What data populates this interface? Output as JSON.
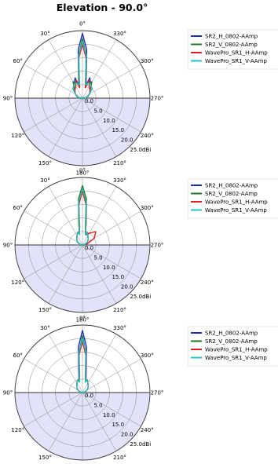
{
  "title": "Elevation - 90.0°",
  "colors": {
    "SR2_H_0802-AAmp": "#1f2db5",
    "SR2_V_0802-AAmp": "#1f7a1f",
    "WavePro_SR1_H-AAmp": "#e02020",
    "WavePro_SR1_V-AAmp": "#22c4c4",
    "lower_half_fill": "#e2e2f8"
  },
  "chart_data": [
    {
      "type": "polar-line",
      "angle_labels": [
        "0°",
        "330°",
        "300°",
        "270°",
        "240°",
        "210°",
        "180°",
        "150°",
        "120°",
        "90°",
        "60°",
        "30°"
      ],
      "radial_labels": [
        "0.0",
        "5.0",
        "10.0",
        "15.0",
        "20.0",
        "25.0dBi"
      ],
      "rlim": [
        0,
        25
      ],
      "legend": [
        "SR2_H_0802-AAmp",
        "SR2_V_0802-AAmp",
        "WavePro_SR1_H-AAmp",
        "WavePro_SR1_V-AAmp"
      ],
      "series": [
        {
          "name": "SR2_H_0802-AAmp",
          "theta": [
            0,
            5,
            10,
            15,
            20,
            30,
            45,
            60,
            75,
            90,
            270,
            285,
            300,
            315,
            330,
            340,
            345,
            350,
            355
          ],
          "r": [
            24,
            18,
            8,
            5,
            8,
            6,
            5,
            3,
            2,
            1,
            1,
            2,
            3,
            5,
            6,
            8,
            5,
            8,
            18
          ]
        },
        {
          "name": "SR2_V_0802-AAmp",
          "theta": [
            0,
            5,
            10,
            15,
            20,
            30,
            45,
            60,
            75,
            90,
            270,
            285,
            300,
            315,
            330,
            340,
            345,
            350,
            355
          ],
          "r": [
            22,
            16,
            8,
            4,
            6,
            7,
            4,
            3,
            2,
            1,
            1,
            2,
            3,
            4,
            7,
            6,
            4,
            8,
            16
          ]
        },
        {
          "name": "WavePro_SR1_H-AAmp",
          "theta": [
            0,
            5,
            10,
            15,
            20,
            30,
            45,
            60,
            75,
            90,
            270,
            285,
            300,
            315,
            330,
            340,
            345,
            350,
            355
          ],
          "r": [
            20,
            15,
            7,
            4,
            7,
            5,
            4,
            3,
            2,
            1,
            1,
            2,
            3,
            4,
            5,
            7,
            4,
            7,
            15
          ]
        },
        {
          "name": "WavePro_SR1_V-AAmp",
          "theta": [
            0,
            5,
            10,
            15,
            20,
            30,
            45,
            60,
            75,
            90,
            270,
            285,
            300,
            315,
            330,
            340,
            345,
            350,
            355
          ],
          "r": [
            21,
            16,
            6,
            5,
            6,
            6,
            5,
            3,
            2,
            1,
            1,
            2,
            3,
            5,
            6,
            6,
            5,
            6,
            16
          ]
        }
      ]
    },
    {
      "type": "polar-line",
      "angle_labels": [
        "0°",
        "330°",
        "300°",
        "270°",
        "240°",
        "210°",
        "180°",
        "150°",
        "120°",
        "90°",
        "60°",
        "30°"
      ],
      "radial_labels": [
        "0.0",
        "5.0",
        "10.0",
        "15.0",
        "20.0",
        "25.0dBi"
      ],
      "rlim": [
        0,
        25
      ],
      "legend": [
        "SR2_H_0802-AAmp",
        "SR2_V_0802-AAmp",
        "WavePro_SR1_H-AAmp",
        "WavePro_SR1_V-AAmp"
      ],
      "series": [
        {
          "name": "SR2_H_0802-AAmp",
          "theta": [
            0,
            5,
            10,
            15,
            20,
            30,
            45,
            60,
            75,
            90,
            270,
            285,
            300,
            315,
            330,
            340,
            345,
            350,
            355
          ],
          "r": [
            21,
            16,
            7,
            4,
            5,
            4,
            3,
            2,
            1,
            1,
            1,
            1,
            2,
            3,
            4,
            5,
            4,
            7,
            16
          ]
        },
        {
          "name": "SR2_V_0802-AAmp",
          "theta": [
            0,
            5,
            10,
            15,
            20,
            30,
            45,
            60,
            75,
            90,
            270,
            285,
            300,
            315,
            330,
            340,
            345,
            350,
            355
          ],
          "r": [
            22,
            17,
            8,
            4,
            5,
            4,
            3,
            2,
            1,
            1,
            1,
            1,
            2,
            3,
            4,
            5,
            4,
            8,
            17
          ]
        },
        {
          "name": "WavePro_SR1_H-AAmp",
          "theta": [
            0,
            5,
            10,
            15,
            20,
            30,
            45,
            60,
            75,
            90,
            270,
            285,
            300,
            315,
            330,
            340,
            345,
            350,
            355
          ],
          "r": [
            20,
            15,
            6,
            5,
            5,
            4,
            3,
            2,
            1,
            1,
            1,
            2,
            5,
            7,
            5,
            4,
            5,
            6,
            15
          ]
        },
        {
          "name": "WavePro_SR1_V-AAmp",
          "theta": [
            0,
            5,
            10,
            15,
            20,
            30,
            45,
            60,
            75,
            90,
            270,
            285,
            300,
            315,
            330,
            340,
            345,
            350,
            355
          ],
          "r": [
            21,
            16,
            7,
            4,
            5,
            4,
            3,
            2,
            1,
            1,
            1,
            1,
            2,
            3,
            4,
            5,
            4,
            7,
            16
          ]
        }
      ]
    },
    {
      "type": "polar-line",
      "angle_labels": [
        "0°",
        "330°",
        "300°",
        "270°",
        "240°",
        "210°",
        "180°",
        "150°",
        "120°",
        "90°",
        "60°",
        "30°"
      ],
      "radial_labels": [
        "0.0",
        "5.0",
        "10.0",
        "15.0",
        "20.0",
        "25.0dBi"
      ],
      "rlim": [
        0,
        25
      ],
      "legend": [
        "SR2_H_0802-AAmp",
        "SR2_V_0802-AAmp",
        "WavePro_SR1_H-AAmp",
        "WavePro_SR1_V-AAmp"
      ],
      "series": [
        {
          "name": "SR2_H_0802-AAmp",
          "theta": [
            0,
            5,
            10,
            15,
            20,
            30,
            45,
            60,
            75,
            90,
            270,
            285,
            300,
            315,
            330,
            340,
            345,
            350,
            355
          ],
          "r": [
            23,
            17,
            8,
            5,
            5,
            4,
            3,
            2,
            1,
            1,
            1,
            1,
            2,
            3,
            4,
            5,
            5,
            8,
            17
          ]
        },
        {
          "name": "SR2_V_0802-AAmp",
          "theta": [
            0,
            5,
            10,
            15,
            20,
            30,
            45,
            60,
            75,
            90,
            270,
            285,
            300,
            315,
            330,
            340,
            345,
            350,
            355
          ],
          "r": [
            21,
            15,
            7,
            4,
            5,
            4,
            3,
            2,
            1,
            1,
            1,
            1,
            2,
            3,
            4,
            5,
            4,
            7,
            15
          ]
        },
        {
          "name": "WavePro_SR1_H-AAmp",
          "theta": [
            0,
            5,
            10,
            15,
            20,
            30,
            45,
            60,
            75,
            90,
            270,
            285,
            300,
            315,
            330,
            340,
            345,
            350,
            355
          ],
          "r": [
            19,
            14,
            6,
            5,
            5,
            4,
            3,
            2,
            1,
            1,
            1,
            1,
            2,
            3,
            4,
            5,
            5,
            6,
            14
          ]
        },
        {
          "name": "WavePro_SR1_V-AAmp",
          "theta": [
            0,
            5,
            10,
            15,
            20,
            30,
            45,
            60,
            75,
            90,
            270,
            285,
            300,
            315,
            330,
            340,
            345,
            350,
            355
          ],
          "r": [
            20,
            15,
            7,
            4,
            5,
            4,
            3,
            2,
            1,
            1,
            1,
            1,
            2,
            3,
            4,
            5,
            4,
            7,
            15
          ]
        }
      ]
    }
  ]
}
